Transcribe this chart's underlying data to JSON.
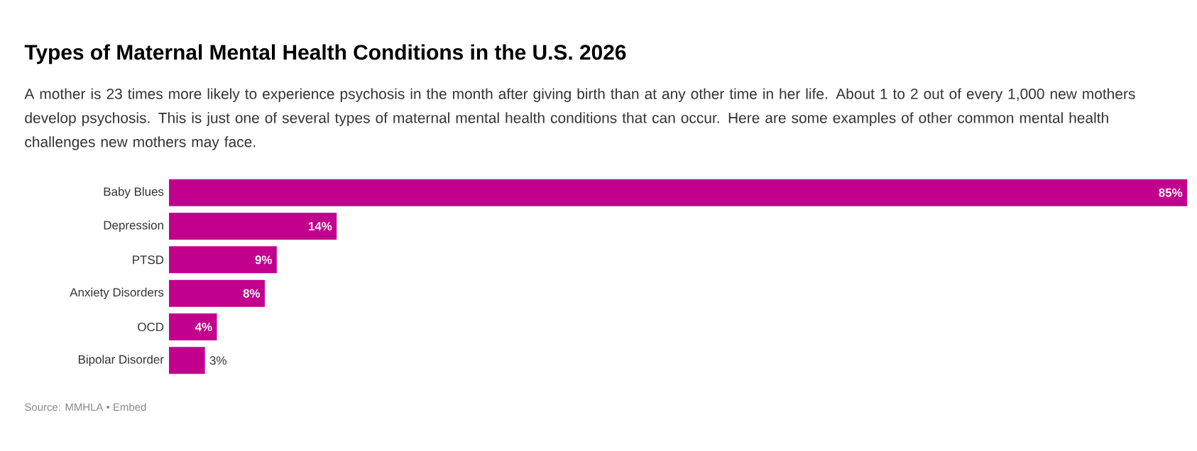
{
  "chart_data": {
    "type": "bar",
    "orientation": "horizontal",
    "title": "Types of Maternal Mental Health Conditions in the U.S. 2026",
    "subtitle": "A mother is 23 times more likely to experience psychosis in the month after giving birth than at any other time in her life. About 1 to 2 out of every 1,000 new mothers develop psychosis. This is just one of several types of maternal mental health conditions that can occur. Here are some examples of other common mental health challenges new mothers may face.",
    "categories": [
      "Baby Blues",
      "Depression",
      "PTSD",
      "Anxiety Disorders",
      "OCD",
      "Bipolar Disorder"
    ],
    "values": [
      85,
      14,
      9,
      8,
      4,
      3
    ],
    "value_labels": [
      "85%",
      "14%",
      "9%",
      "8%",
      "4%",
      "3%"
    ],
    "color": "#c2008e",
    "xlim": [
      0,
      85
    ],
    "tick_labels": "y",
    "annotations": [
      "Source: MMHLA • Embed"
    ]
  }
}
